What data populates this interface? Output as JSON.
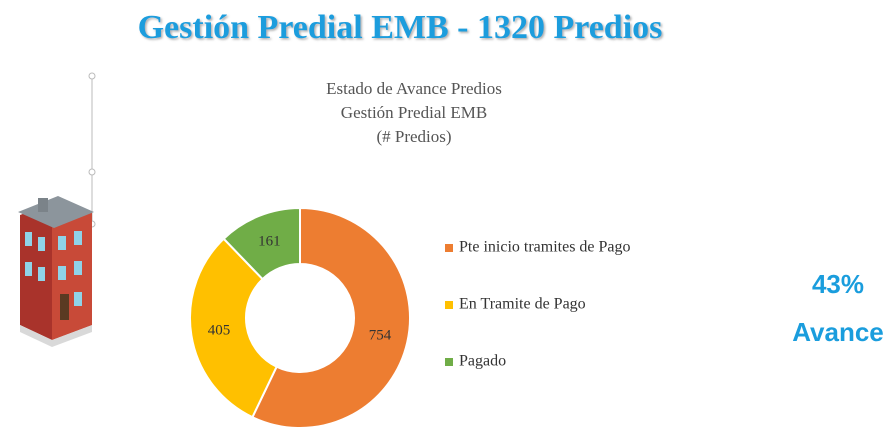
{
  "header": {
    "title": "Gestión Predial EMB - 1320 Predios"
  },
  "chart_data": {
    "type": "donut",
    "title_lines": [
      "Estado de Avance Predios",
      "Gestión Predial EMB",
      "(# Predios)"
    ],
    "categories": [
      "Pte inicio tramites de Pago",
      "En Tramite de Pago",
      "Pagado"
    ],
    "values": [
      754,
      405,
      161
    ],
    "colors": [
      "#ed7d31",
      "#ffc000",
      "#70ad47"
    ],
    "legend": "right"
  },
  "kpi": {
    "value_text": "43%",
    "caption": "Avance"
  }
}
